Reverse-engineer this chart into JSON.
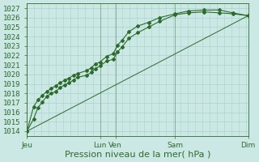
{
  "bg_color": "#cce8e4",
  "grid_color": "#a8d4ce",
  "line_color": "#2d6a2d",
  "marker_color": "#2d6a2d",
  "ylabel_values": [
    1014,
    1015,
    1016,
    1017,
    1018,
    1019,
    1020,
    1021,
    1022,
    1023,
    1024,
    1025,
    1026,
    1027
  ],
  "ylim": [
    1013.5,
    1027.5
  ],
  "xlabel": "Pression niveau de la mer( hPa )",
  "xlabel_fontsize": 8,
  "tick_fontsize": 6.5,
  "day_labels": [
    "Jeu",
    "Lun",
    "Ven",
    "Sam",
    "Dim"
  ],
  "day_positions": [
    0.0,
    0.33,
    0.4,
    0.67,
    1.0
  ],
  "series1_x": [
    0.0,
    0.03,
    0.05,
    0.07,
    0.09,
    0.11,
    0.13,
    0.15,
    0.17,
    0.19,
    0.21,
    0.23,
    0.27,
    0.29,
    0.31,
    0.33,
    0.36,
    0.39,
    0.41,
    0.43,
    0.46,
    0.5,
    0.55,
    0.6,
    0.67,
    0.73,
    0.8,
    0.87,
    0.93,
    1.0
  ],
  "series1_y": [
    1014.0,
    1015.3,
    1016.5,
    1017.1,
    1017.7,
    1018.0,
    1018.2,
    1018.6,
    1018.9,
    1019.1,
    1019.4,
    1019.7,
    1019.9,
    1020.2,
    1020.6,
    1020.9,
    1021.4,
    1021.6,
    1022.4,
    1022.9,
    1023.8,
    1024.4,
    1025.0,
    1025.6,
    1026.3,
    1026.5,
    1026.6,
    1026.5,
    1026.4,
    1026.2
  ],
  "series2_x": [
    0.0,
    0.03,
    0.05,
    0.07,
    0.09,
    0.11,
    0.13,
    0.15,
    0.17,
    0.19,
    0.21,
    0.23,
    0.27,
    0.29,
    0.31,
    0.33,
    0.36,
    0.39,
    0.41,
    0.43,
    0.46,
    0.5,
    0.55,
    0.6,
    0.67,
    0.73,
    0.8,
    0.87,
    0.93,
    1.0
  ],
  "series2_y": [
    1014.0,
    1016.6,
    1017.3,
    1017.8,
    1018.2,
    1018.5,
    1018.8,
    1019.1,
    1019.4,
    1019.6,
    1019.9,
    1020.1,
    1020.4,
    1020.7,
    1021.1,
    1021.3,
    1021.9,
    1022.2,
    1023.1,
    1023.6,
    1024.5,
    1025.1,
    1025.5,
    1026.0,
    1026.4,
    1026.7,
    1026.8,
    1026.8,
    1026.5,
    1026.2
  ],
  "series3_x": [
    0.0,
    1.0
  ],
  "series3_y": [
    1014.0,
    1026.2
  ],
  "xlim": [
    0.0,
    1.0
  ]
}
